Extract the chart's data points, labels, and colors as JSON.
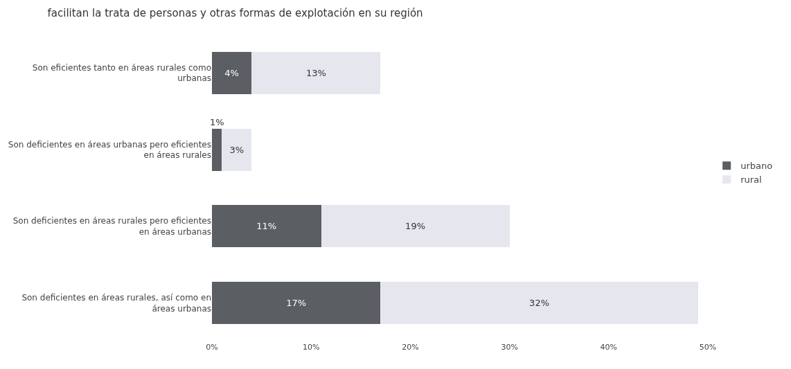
{
  "chart_data": {
    "type": "bar",
    "orientation": "horizontal",
    "stacked": true,
    "title": "facilitan la trata de personas y otras formas de explotación en su región",
    "categories": [
      "Son eficientes tanto en áreas rurales como urbanas",
      "Son deficientes en áreas urbanas pero eficientes en áreas rurales",
      "Son deficientes en áreas rurales pero eficientes en áreas urbanas",
      "Son deficientes en áreas rurales, así como en áreas urbanas"
    ],
    "series": [
      {
        "name": "urbano",
        "color": "#5b5f63",
        "values": [
          4,
          1,
          11,
          17
        ],
        "value_labels": [
          "4%",
          "1%",
          "11%",
          "17%"
        ]
      },
      {
        "name": "rural",
        "color": "#e6e7ee",
        "values": [
          13,
          3,
          19,
          32
        ],
        "value_labels": [
          "13%",
          "3%",
          "19%",
          "32%"
        ]
      }
    ],
    "xlim": [
      0,
      50
    ],
    "xticks": [
      {
        "value": 0,
        "label": "0%"
      },
      {
        "value": 10,
        "label": "10%"
      },
      {
        "value": 20,
        "label": "20%"
      },
      {
        "value": 30,
        "label": "30%"
      },
      {
        "value": 40,
        "label": "40%"
      },
      {
        "value": 50,
        "label": "50%"
      }
    ],
    "legend": "right"
  }
}
